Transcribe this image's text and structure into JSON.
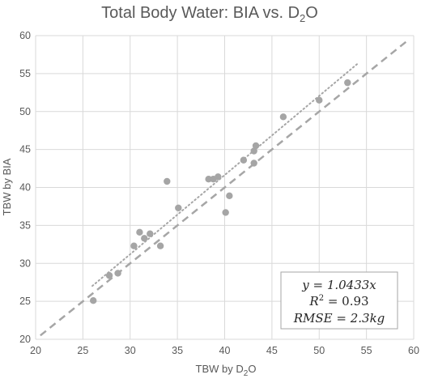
{
  "chart_data": {
    "type": "scatter",
    "title_main": "Total Body Water: BIA vs. D",
    "title_sub": "2",
    "title_end": "O",
    "xlabel_main": "TBW by D",
    "xlabel_sub": "2",
    "xlabel_end": "O",
    "ylabel": "TBW by BIA",
    "xlim": [
      20,
      60
    ],
    "ylim": [
      20,
      60
    ],
    "xticks": [
      20,
      25,
      30,
      35,
      40,
      45,
      50,
      55,
      60
    ],
    "yticks": [
      20,
      25,
      30,
      35,
      40,
      45,
      50,
      55,
      60
    ],
    "grid": true,
    "colors": {
      "points": "#a5a5a5",
      "identity_line": "#a6a6a6",
      "trend_line": "#a6a6a6",
      "grid": "#d9d9d9",
      "text": "#595959"
    },
    "points": [
      {
        "x": 26.1,
        "y": 25.1
      },
      {
        "x": 27.8,
        "y": 28.4
      },
      {
        "x": 28.7,
        "y": 28.7
      },
      {
        "x": 30.4,
        "y": 32.3
      },
      {
        "x": 31.0,
        "y": 34.1
      },
      {
        "x": 31.5,
        "y": 33.3
      },
      {
        "x": 32.1,
        "y": 33.9
      },
      {
        "x": 33.2,
        "y": 32.3
      },
      {
        "x": 33.9,
        "y": 40.8
      },
      {
        "x": 35.1,
        "y": 37.3
      },
      {
        "x": 38.3,
        "y": 41.1
      },
      {
        "x": 38.8,
        "y": 41.1
      },
      {
        "x": 39.3,
        "y": 41.4
      },
      {
        "x": 40.1,
        "y": 36.7
      },
      {
        "x": 40.5,
        "y": 38.9
      },
      {
        "x": 42.0,
        "y": 43.6
      },
      {
        "x": 43.1,
        "y": 44.8
      },
      {
        "x": 43.1,
        "y": 43.2
      },
      {
        "x": 43.3,
        "y": 45.5
      },
      {
        "x": 46.2,
        "y": 49.3
      },
      {
        "x": 50.0,
        "y": 51.5
      },
      {
        "x": 53.0,
        "y": 53.8
      }
    ],
    "identity_line": {
      "x": [
        20.5,
        59.5
      ],
      "y": [
        20.5,
        59.5
      ]
    },
    "trend_line": {
      "x": [
        26.0,
        54.0
      ],
      "slope": 1.0433,
      "intercept": -0.1
    },
    "annotation": {
      "line1": "y = 1.0433x",
      "line2_a": "R",
      "line2_sup": "2",
      "line2_b": " = 0.93",
      "line3": "RMSE = 2.3kg"
    }
  }
}
